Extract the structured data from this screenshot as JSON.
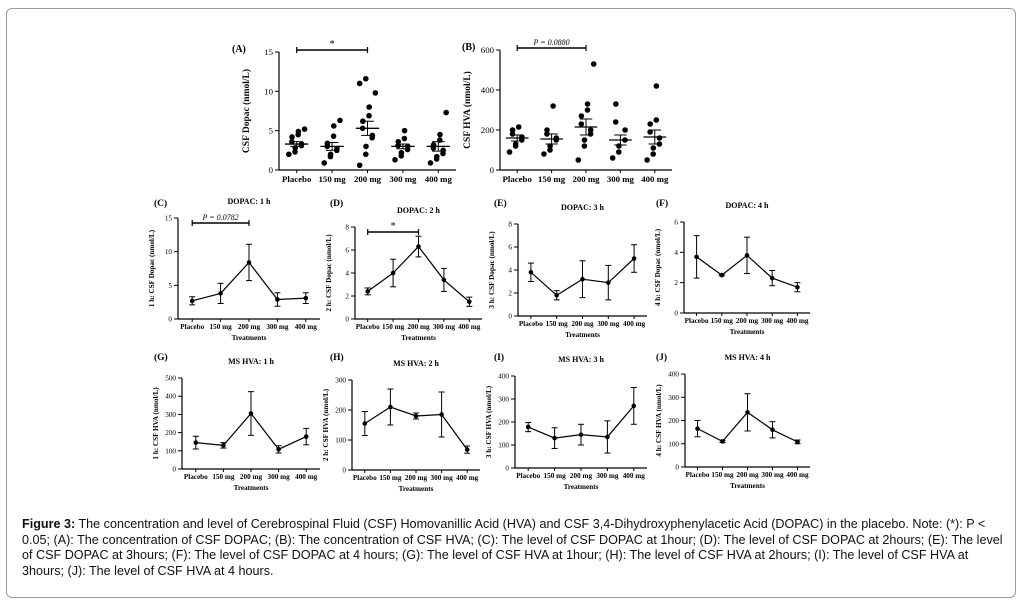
{
  "caption": {
    "label": "Figure 3:",
    "text": "The concentration and level of Cerebrospinal Fluid (CSF) Homovanillic Acid (HVA) and CSF 3,4-Dihydroxyphenylacetic Acid (DOPAC) in the placebo. Note: (*): P < 0.05; (A): The concentration of CSF DOPAC; (B): The concentration of CSF HVA; (C): The level of CSF DOPAC at 1hour; (D): The level of CSF DOPAC at 2hours; (E): The level of CSF DOPAC at 3hours; (F): The level of CSF DOPAC at 4 hours; (G): The level of CSF HVA at 1hour; (H): The level of CSF HVA at 2hours; (I): The level of CSF HVA at 3hours; (J): The level of CSF HVA at 4 hours."
  },
  "chart_data": [
    {
      "panel": "(A)",
      "type": "scatter",
      "ylabel": "CSF Dopac (nmol/L)",
      "xlabel": "",
      "categories": [
        "Placebo",
        "150 mg",
        "200 mg",
        "300 mg",
        "400 mg"
      ],
      "ylim": [
        0,
        15
      ],
      "yticks": [
        0,
        5,
        10,
        15
      ],
      "points": [
        [
          2.0,
          2.3,
          2.8,
          3.1,
          3.3,
          3.6,
          4.2,
          4.5,
          4.9,
          5.2
        ],
        [
          0.9,
          1.7,
          2.0,
          2.5,
          2.7,
          3.0,
          3.4,
          4.3,
          5.6,
          6.3
        ],
        [
          0.6,
          2.0,
          3.0,
          4.1,
          4.4,
          5.3,
          6.2,
          6.9,
          8.0,
          9.8,
          11.0,
          11.6
        ],
        [
          1.3,
          1.8,
          2.2,
          2.6,
          3.0,
          3.1,
          3.6,
          4.0,
          5.0
        ],
        [
          0.9,
          1.4,
          1.7,
          2.1,
          2.5,
          2.8,
          3.2,
          3.8,
          4.5,
          7.3
        ]
      ],
      "mean": [
        3.3,
        3.0,
        5.3,
        3.0,
        3.0
      ],
      "sem": [
        0.3,
        0.5,
        0.9,
        0.3,
        0.6
      ],
      "annotations": [
        {
          "text": "*",
          "from": 0,
          "to": 2
        }
      ]
    },
    {
      "panel": "(B)",
      "type": "scatter",
      "ylabel": "CSF HVA (nmol/L)",
      "xlabel": "",
      "categories": [
        "Placebo",
        "150 mg",
        "200 mg",
        "300 mg",
        "400 mg"
      ],
      "ylim": [
        0,
        600
      ],
      "yticks": [
        0,
        200,
        400,
        600
      ],
      "points": [
        [
          90,
          120,
          130,
          150,
          165,
          180,
          200,
          215
        ],
        [
          80,
          100,
          120,
          150,
          160,
          180,
          200,
          320
        ],
        [
          50,
          120,
          150,
          180,
          200,
          230,
          270,
          300,
          330,
          530
        ],
        [
          60,
          90,
          120,
          150,
          200,
          240,
          330
        ],
        [
          50,
          80,
          110,
          130,
          160,
          190,
          230,
          250,
          420
        ]
      ],
      "mean": [
        160,
        155,
        215,
        150,
        165
      ],
      "sem": [
        15,
        25,
        40,
        25,
        35
      ],
      "annotations": [
        {
          "text": "P = 0.0880",
          "from": 0,
          "to": 2
        }
      ]
    },
    {
      "panel": "(C)",
      "type": "line",
      "title": "DOPAC: 1 h",
      "ylabel": "1 h: CSF Dopac (nmol/L)",
      "xlabel": "Treatments",
      "categories": [
        "Placebo",
        "150 mg",
        "200 mg",
        "300 mg",
        "400 mg"
      ],
      "ylim": [
        0,
        15
      ],
      "yticks": [
        0,
        5,
        10,
        15
      ],
      "values": [
        2.7,
        3.8,
        8.4,
        2.9,
        3.1
      ],
      "err": [
        0.6,
        1.5,
        2.7,
        1.0,
        0.8
      ],
      "annotations": [
        {
          "text": "P = 0.0782",
          "from": 0,
          "to": 2
        }
      ]
    },
    {
      "panel": "(D)",
      "type": "line",
      "title": "DOPAC: 2 h",
      "ylabel": "2 h: CSF Dopac (nmol/L)",
      "xlabel": "Treatments",
      "categories": [
        "Placebo",
        "150 mg",
        "200 mg",
        "300 mg",
        "400 mg"
      ],
      "ylim": [
        0,
        8
      ],
      "yticks": [
        0,
        2,
        4,
        6,
        8
      ],
      "values": [
        2.4,
        4.0,
        6.3,
        3.4,
        1.5
      ],
      "err": [
        0.3,
        1.2,
        0.9,
        1.0,
        0.4
      ],
      "annotations": [
        {
          "text": "*",
          "from": 0,
          "to": 2
        }
      ]
    },
    {
      "panel": "(E)",
      "type": "line",
      "title": "DOPAC: 3 h",
      "ylabel": "3 h: CSF Dopac (nmol/L)",
      "xlabel": "Treatments",
      "categories": [
        "Placebo",
        "150 mg",
        "200 mg",
        "300 mg",
        "400 mg"
      ],
      "ylim": [
        0,
        8
      ],
      "yticks": [
        0,
        2,
        4,
        6,
        8
      ],
      "values": [
        3.8,
        1.8,
        3.2,
        2.9,
        5.0
      ],
      "err": [
        0.8,
        0.4,
        1.6,
        1.5,
        1.2
      ]
    },
    {
      "panel": "(F)",
      "type": "line",
      "title": "DOPAC: 4 h",
      "ylabel": "4 h: CSF Dopac (nmol/L)",
      "xlabel": "Treatments",
      "categories": [
        "Placebo",
        "150 mg",
        "200 mg",
        "300 mg",
        "400 mg"
      ],
      "ylim": [
        0,
        6
      ],
      "yticks": [
        0,
        2,
        4,
        6
      ],
      "values": [
        3.7,
        2.5,
        3.8,
        2.3,
        1.7
      ],
      "err": [
        1.4,
        0.05,
        1.2,
        0.5,
        0.3
      ]
    },
    {
      "panel": "(G)",
      "type": "line",
      "title": "MS HVA: 1 h",
      "ylabel": "1 h: CSF HVA (nmol/L)",
      "xlabel": "Treatments",
      "categories": [
        "Placebo",
        "150 mg",
        "200 mg",
        "300 mg",
        "400 mg"
      ],
      "ylim": [
        0,
        500
      ],
      "yticks": [
        0,
        100,
        200,
        300,
        400,
        500
      ],
      "values": [
        145,
        130,
        305,
        108,
        178
      ],
      "err": [
        35,
        15,
        120,
        20,
        45
      ]
    },
    {
      "panel": "(H)",
      "type": "line",
      "title": "MS HVA: 2 h",
      "ylabel": "2 h: CSF HVA (nmol/L)",
      "xlabel": "Treatments",
      "categories": [
        "Placebo",
        "150 mg",
        "200 mg",
        "300 mg",
        "400 mg"
      ],
      "ylim": [
        0,
        300
      ],
      "yticks": [
        0,
        100,
        200,
        300
      ],
      "values": [
        155,
        210,
        180,
        185,
        68
      ],
      "err": [
        40,
        60,
        10,
        75,
        12
      ]
    },
    {
      "panel": "(I)",
      "type": "line",
      "title": "MS HVA: 3 h",
      "ylabel": "3 h: CSF HVA (nmol/L)",
      "xlabel": "Treatments",
      "categories": [
        "Placebo",
        "150 mg",
        "200 mg",
        "300 mg",
        "400 mg"
      ],
      "ylim": [
        0,
        400
      ],
      "yticks": [
        0,
        100,
        200,
        300,
        400
      ],
      "values": [
        178,
        130,
        145,
        135,
        270
      ],
      "err": [
        20,
        45,
        45,
        70,
        80
      ]
    },
    {
      "panel": "(J)",
      "type": "line",
      "title": "MS HVA: 4 h",
      "ylabel": "4 h: CSF HVA (nmol/L)",
      "xlabel": "Treatments",
      "categories": [
        "Placebo",
        "150 mg",
        "200 mg",
        "300 mg",
        "400 mg"
      ],
      "ylim": [
        0,
        400
      ],
      "yticks": [
        0,
        100,
        200,
        300,
        400
      ],
      "values": [
        165,
        110,
        235,
        160,
        108
      ],
      "err": [
        35,
        5,
        80,
        35,
        8
      ]
    }
  ]
}
